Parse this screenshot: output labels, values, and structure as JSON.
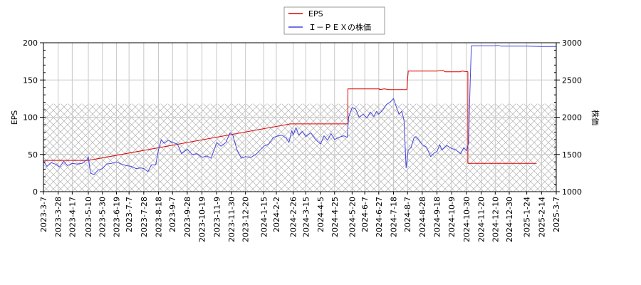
{
  "chart_data": {
    "type": "line",
    "title": "",
    "legend": {
      "position": "top-center",
      "entries": [
        {
          "label": "EPS",
          "color": "#dd0000"
        },
        {
          "label": "Ｉ－ＰＥＸの株価",
          "color": "#4444dd"
        }
      ]
    },
    "xlabel": "",
    "ylabel_left": "EPS",
    "ylabel_right": "株価",
    "x_range": [
      "2023-3-7",
      "2025-3-7"
    ],
    "x_tick_labels": [
      "2023-3-7",
      "2023-3-28",
      "2023-4-17",
      "2023-5-10",
      "2023-5-30",
      "2023-6-19",
      "2023-7-7",
      "2023-7-28",
      "2023-8-18",
      "2023-9-7",
      "2023-9-28",
      "2023-10-19",
      "2023-11-9",
      "2023-11-30",
      "2023-12-20",
      "2024-1-15",
      "2024-2-2",
      "2024-2-26",
      "2024-3-15",
      "2024-4-5",
      "2024-4-25",
      "2024-5-20",
      "2024-6-7",
      "2024-6-27",
      "2024-7-18",
      "2024-8-7",
      "2024-8-28",
      "2024-9-18",
      "2024-10-9",
      "2024-10-30",
      "2024-11-20",
      "2024-12-10",
      "2024-12-30",
      "2025-1-24",
      "2025-2-14",
      "2025-3-7"
    ],
    "ylim_left": [
      0,
      200
    ],
    "y_ticks_left": [
      0,
      50,
      100,
      150,
      200
    ],
    "ylim_right": [
      1000,
      3000
    ],
    "y_ticks_right": [
      1000,
      1500,
      2000,
      2500,
      3000
    ],
    "grid": true,
    "hatched_region": {
      "y_left_from": 0,
      "y_left_to": 118
    },
    "series": [
      {
        "name": "EPS",
        "axis": "left",
        "color": "#dd0000",
        "step": true,
        "points": [
          {
            "date": "2023-3-7",
            "value": 42
          },
          {
            "date": "2023-5-10",
            "value": 42
          },
          {
            "date": "2024-2-22",
            "value": 91
          },
          {
            "date": "2024-5-14",
            "value": 91
          },
          {
            "date": "2024-5-14",
            "value": 138
          },
          {
            "date": "2024-6-28",
            "value": 138
          },
          {
            "date": "2024-6-28",
            "value": 137
          },
          {
            "date": "2024-7-5",
            "value": 138
          },
          {
            "date": "2024-7-12",
            "value": 137
          },
          {
            "date": "2024-8-6",
            "value": 137
          },
          {
            "date": "2024-8-8",
            "value": 162
          },
          {
            "date": "2024-9-18",
            "value": 162
          },
          {
            "date": "2024-9-26",
            "value": 163
          },
          {
            "date": "2024-9-30",
            "value": 161
          },
          {
            "date": "2024-10-21",
            "value": 161
          },
          {
            "date": "2024-10-24",
            "value": 162
          },
          {
            "date": "2024-11-1",
            "value": 161
          },
          {
            "date": "2024-11-1",
            "value": 38
          },
          {
            "date": "2025-2-7",
            "value": 38
          }
        ]
      },
      {
        "name": "Ｉ－ＰＥＸの株価",
        "axis": "right",
        "color": "#4444dd",
        "points": [
          {
            "date": "2023-3-7",
            "value": 1410
          },
          {
            "date": "2023-3-12",
            "value": 1340
          },
          {
            "date": "2023-3-18",
            "value": 1390
          },
          {
            "date": "2023-3-24",
            "value": 1370
          },
          {
            "date": "2023-3-30",
            "value": 1330
          },
          {
            "date": "2023-4-5",
            "value": 1410
          },
          {
            "date": "2023-4-10",
            "value": 1350
          },
          {
            "date": "2023-4-17",
            "value": 1380
          },
          {
            "date": "2023-4-24",
            "value": 1370
          },
          {
            "date": "2023-5-1",
            "value": 1380
          },
          {
            "date": "2023-5-8",
            "value": 1430
          },
          {
            "date": "2023-5-10",
            "value": 1470
          },
          {
            "date": "2023-5-13",
            "value": 1250
          },
          {
            "date": "2023-5-18",
            "value": 1230
          },
          {
            "date": "2023-5-24",
            "value": 1290
          },
          {
            "date": "2023-5-30",
            "value": 1310
          },
          {
            "date": "2023-6-5",
            "value": 1370
          },
          {
            "date": "2023-6-12",
            "value": 1380
          },
          {
            "date": "2023-6-19",
            "value": 1400
          },
          {
            "date": "2023-6-26",
            "value": 1370
          },
          {
            "date": "2023-7-3",
            "value": 1350
          },
          {
            "date": "2023-7-10",
            "value": 1340
          },
          {
            "date": "2023-7-17",
            "value": 1310
          },
          {
            "date": "2023-7-24",
            "value": 1320
          },
          {
            "date": "2023-7-28",
            "value": 1310
          },
          {
            "date": "2023-8-3",
            "value": 1270
          },
          {
            "date": "2023-8-8",
            "value": 1360
          },
          {
            "date": "2023-8-14",
            "value": 1360
          },
          {
            "date": "2023-8-18",
            "value": 1560
          },
          {
            "date": "2023-8-22",
            "value": 1700
          },
          {
            "date": "2023-8-26",
            "value": 1650
          },
          {
            "date": "2023-9-1",
            "value": 1690
          },
          {
            "date": "2023-9-7",
            "value": 1660
          },
          {
            "date": "2023-9-14",
            "value": 1640
          },
          {
            "date": "2023-9-20",
            "value": 1510
          },
          {
            "date": "2023-9-28",
            "value": 1570
          },
          {
            "date": "2023-10-5",
            "value": 1500
          },
          {
            "date": "2023-10-12",
            "value": 1510
          },
          {
            "date": "2023-10-19",
            "value": 1460
          },
          {
            "date": "2023-10-26",
            "value": 1480
          },
          {
            "date": "2023-11-1",
            "value": 1450
          },
          {
            "date": "2023-11-9",
            "value": 1660
          },
          {
            "date": "2023-11-15",
            "value": 1610
          },
          {
            "date": "2023-11-22",
            "value": 1660
          },
          {
            "date": "2023-11-28",
            "value": 1790
          },
          {
            "date": "2023-12-2",
            "value": 1760
          },
          {
            "date": "2023-12-8",
            "value": 1560
          },
          {
            "date": "2023-12-14",
            "value": 1450
          },
          {
            "date": "2023-12-20",
            "value": 1470
          },
          {
            "date": "2023-12-28",
            "value": 1460
          },
          {
            "date": "2024-1-5",
            "value": 1510
          },
          {
            "date": "2024-1-15",
            "value": 1610
          },
          {
            "date": "2024-1-22",
            "value": 1640
          },
          {
            "date": "2024-1-29",
            "value": 1730
          },
          {
            "date": "2024-2-5",
            "value": 1750
          },
          {
            "date": "2024-2-10",
            "value": 1760
          },
          {
            "date": "2024-2-16",
            "value": 1720
          },
          {
            "date": "2024-2-20",
            "value": 1660
          },
          {
            "date": "2024-2-24",
            "value": 1820
          },
          {
            "date": "2024-2-26",
            "value": 1760
          },
          {
            "date": "2024-3-1",
            "value": 1860
          },
          {
            "date": "2024-3-5",
            "value": 1760
          },
          {
            "date": "2024-3-10",
            "value": 1810
          },
          {
            "date": "2024-3-15",
            "value": 1740
          },
          {
            "date": "2024-3-22",
            "value": 1790
          },
          {
            "date": "2024-3-29",
            "value": 1700
          },
          {
            "date": "2024-4-5",
            "value": 1640
          },
          {
            "date": "2024-4-10",
            "value": 1750
          },
          {
            "date": "2024-4-15",
            "value": 1690
          },
          {
            "date": "2024-4-20",
            "value": 1780
          },
          {
            "date": "2024-4-25",
            "value": 1700
          },
          {
            "date": "2024-5-1",
            "value": 1730
          },
          {
            "date": "2024-5-8",
            "value": 1750
          },
          {
            "date": "2024-5-13",
            "value": 1730
          },
          {
            "date": "2024-5-15",
            "value": 2000
          },
          {
            "date": "2024-5-20",
            "value": 2130
          },
          {
            "date": "2024-5-25",
            "value": 2110
          },
          {
            "date": "2024-5-30",
            "value": 2000
          },
          {
            "date": "2024-6-5",
            "value": 2040
          },
          {
            "date": "2024-6-10",
            "value": 1990
          },
          {
            "date": "2024-6-15",
            "value": 2070
          },
          {
            "date": "2024-6-20",
            "value": 2010
          },
          {
            "date": "2024-6-24",
            "value": 2080
          },
          {
            "date": "2024-6-27",
            "value": 2040
          },
          {
            "date": "2024-7-3",
            "value": 2100
          },
          {
            "date": "2024-7-8",
            "value": 2170
          },
          {
            "date": "2024-7-13",
            "value": 2200
          },
          {
            "date": "2024-7-18",
            "value": 2250
          },
          {
            "date": "2024-7-22",
            "value": 2140
          },
          {
            "date": "2024-7-26",
            "value": 2040
          },
          {
            "date": "2024-7-30",
            "value": 2080
          },
          {
            "date": "2024-8-2",
            "value": 1950
          },
          {
            "date": "2024-8-5",
            "value": 1320
          },
          {
            "date": "2024-8-8",
            "value": 1560
          },
          {
            "date": "2024-8-12",
            "value": 1590
          },
          {
            "date": "2024-8-16",
            "value": 1720
          },
          {
            "date": "2024-8-19",
            "value": 1740
          },
          {
            "date": "2024-8-23",
            "value": 1700
          },
          {
            "date": "2024-8-28",
            "value": 1630
          },
          {
            "date": "2024-9-3",
            "value": 1600
          },
          {
            "date": "2024-9-9",
            "value": 1470
          },
          {
            "date": "2024-9-14",
            "value": 1520
          },
          {
            "date": "2024-9-18",
            "value": 1540
          },
          {
            "date": "2024-9-22",
            "value": 1630
          },
          {
            "date": "2024-9-25",
            "value": 1560
          },
          {
            "date": "2024-10-2",
            "value": 1620
          },
          {
            "date": "2024-10-9",
            "value": 1580
          },
          {
            "date": "2024-10-15",
            "value": 1560
          },
          {
            "date": "2024-10-22",
            "value": 1510
          },
          {
            "date": "2024-10-26",
            "value": 1590
          },
          {
            "date": "2024-10-30",
            "value": 1550
          },
          {
            "date": "2024-11-2",
            "value": 1650
          },
          {
            "date": "2024-11-4",
            "value": 2380
          },
          {
            "date": "2024-11-6",
            "value": 2960
          },
          {
            "date": "2024-11-20",
            "value": 2960
          },
          {
            "date": "2024-12-10",
            "value": 2960
          },
          {
            "date": "2024-12-14",
            "value": 2965
          },
          {
            "date": "2024-12-18",
            "value": 2955
          },
          {
            "date": "2024-12-30",
            "value": 2955
          },
          {
            "date": "2025-1-24",
            "value": 2955
          },
          {
            "date": "2025-2-14",
            "value": 2950
          },
          {
            "date": "2025-3-7",
            "value": 2950
          }
        ]
      }
    ]
  }
}
